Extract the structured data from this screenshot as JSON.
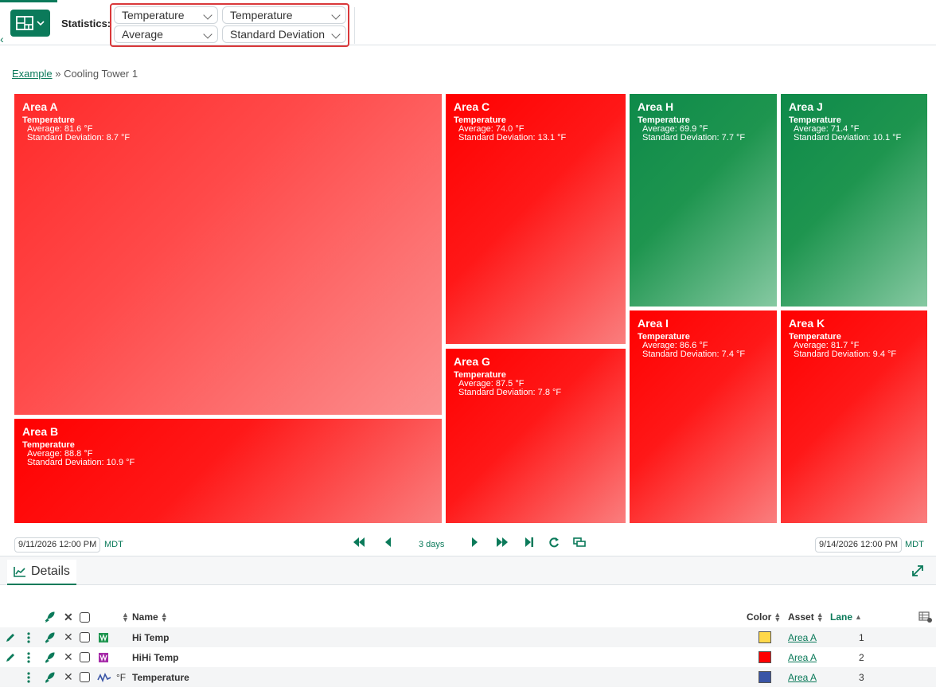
{
  "toolbar": {
    "statistics_label": "Statistics:",
    "selects": [
      {
        "value": "Temperature"
      },
      {
        "value": "Temperature"
      },
      {
        "value": "Average"
      },
      {
        "value": "Standard Deviation"
      }
    ]
  },
  "breadcrumb": {
    "root": "Example",
    "separator": "»",
    "current": "Cooling Tower 1"
  },
  "treemap": {
    "tiles": [
      {
        "name": "Area A",
        "metric": "Temperature",
        "line1": "Average: 81.6 °F",
        "line2": "Standard Deviation: 8.7 °F",
        "status": "red"
      },
      {
        "name": "Area B",
        "metric": "Temperature",
        "line1": "Average: 88.8 °F",
        "line2": "Standard Deviation: 10.9 °F",
        "status": "red"
      },
      {
        "name": "Area C",
        "metric": "Temperature",
        "line1": "Average: 74.0 °F",
        "line2": "Standard Deviation: 13.1 °F",
        "status": "red"
      },
      {
        "name": "Area G",
        "metric": "Temperature",
        "line1": "Average: 87.5 °F",
        "line2": "Standard Deviation: 7.8 °F",
        "status": "red"
      },
      {
        "name": "Area H",
        "metric": "Temperature",
        "line1": "Average: 69.9 °F",
        "line2": "Standard Deviation: 7.7 °F",
        "status": "green"
      },
      {
        "name": "Area I",
        "metric": "Temperature",
        "line1": "Average: 86.6 °F",
        "line2": "Standard Deviation: 7.4 °F",
        "status": "red"
      },
      {
        "name": "Area J",
        "metric": "Temperature",
        "line1": "Average: 71.4 °F",
        "line2": "Standard Deviation: 10.1 °F",
        "status": "green"
      },
      {
        "name": "Area K",
        "metric": "Temperature",
        "line1": "Average: 81.7 °F",
        "line2": "Standard Deviation: 9.4 °F",
        "status": "red"
      }
    ]
  },
  "timebar": {
    "start": "9/11/2026 12:00 PM",
    "end": "9/14/2026 12:00 PM",
    "timezone": "MDT",
    "duration": "3 days"
  },
  "details": {
    "tab_label": "Details",
    "columns": {
      "name": "Name",
      "color": "Color",
      "asset": "Asset",
      "lane": "Lane"
    },
    "rows": [
      {
        "name": "Hi Temp",
        "unit": "",
        "color": "#ffd84a",
        "asset": "Area A",
        "lane": "1"
      },
      {
        "name": "HiHi Temp",
        "unit": "",
        "color": "#ff0000",
        "asset": "Area A",
        "lane": "2"
      },
      {
        "name": "Temperature",
        "unit": "°F",
        "color": "#3a55a6",
        "asset": "Area A",
        "lane": "3"
      }
    ]
  },
  "colors": {
    "accent": "#0b7a5a",
    "highlight": "#d9383a",
    "red": "#ff0000",
    "green": "#0e8a4a"
  }
}
